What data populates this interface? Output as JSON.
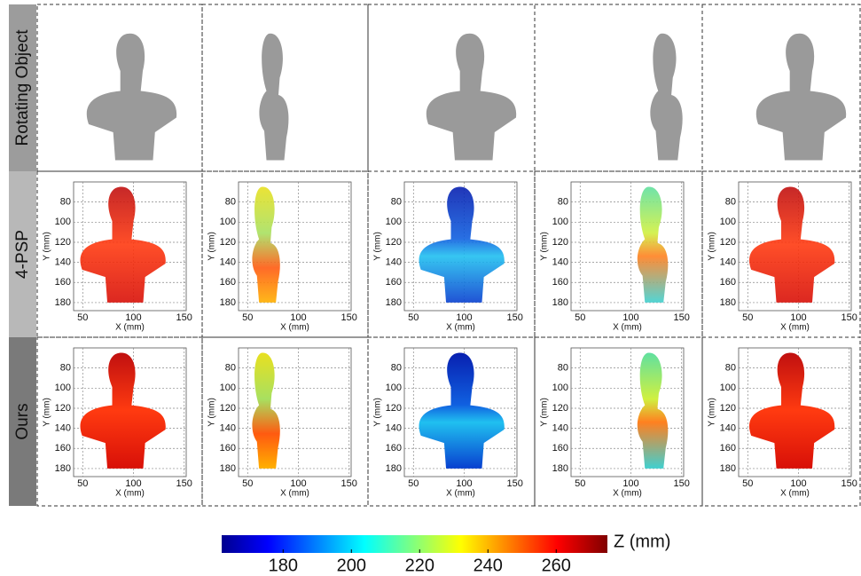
{
  "row_labels": [
    "Rotating Object",
    "4-PSP",
    "Ours"
  ],
  "plot": {
    "xlabel": "X (mm)",
    "ylabel": "Y (mm)",
    "xlim": [
      41,
      152
    ],
    "ylim": [
      60,
      188
    ],
    "xticks": [
      50,
      100,
      150
    ],
    "yticks": [
      80,
      100,
      120,
      140,
      160,
      180
    ]
  },
  "colorbar": {
    "label": "Z (mm)",
    "lim": [
      162,
      275
    ],
    "ticks": [
      180,
      200,
      220,
      240,
      260
    ]
  }
}
